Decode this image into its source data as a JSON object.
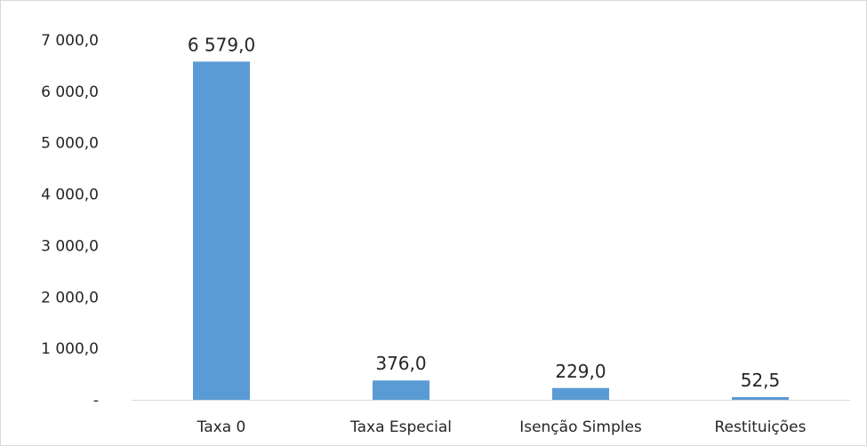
{
  "chart_data": {
    "type": "bar",
    "categories": [
      "Taxa 0",
      "Taxa Especial",
      "Isenção Simples",
      "Restituições"
    ],
    "values": [
      6579.0,
      376.0,
      229.0,
      52.5
    ],
    "data_labels": [
      "6 579,0",
      "376,0",
      "229,0",
      "52,5"
    ],
    "title": "",
    "xlabel": "",
    "ylabel": "",
    "ylim": [
      0,
      7000
    ],
    "y_ticks": [
      0,
      1000,
      2000,
      3000,
      4000,
      5000,
      6000,
      7000
    ],
    "y_tick_labels": [
      "-",
      "1 000,0",
      "2 000,0",
      "3 000,0",
      "4 000,0",
      "5 000,0",
      "6 000,0",
      "7 000,0"
    ],
    "grid": false,
    "legend": "none",
    "bar_color": "#5b9bd5",
    "axis_color": "#d9d9d9"
  }
}
